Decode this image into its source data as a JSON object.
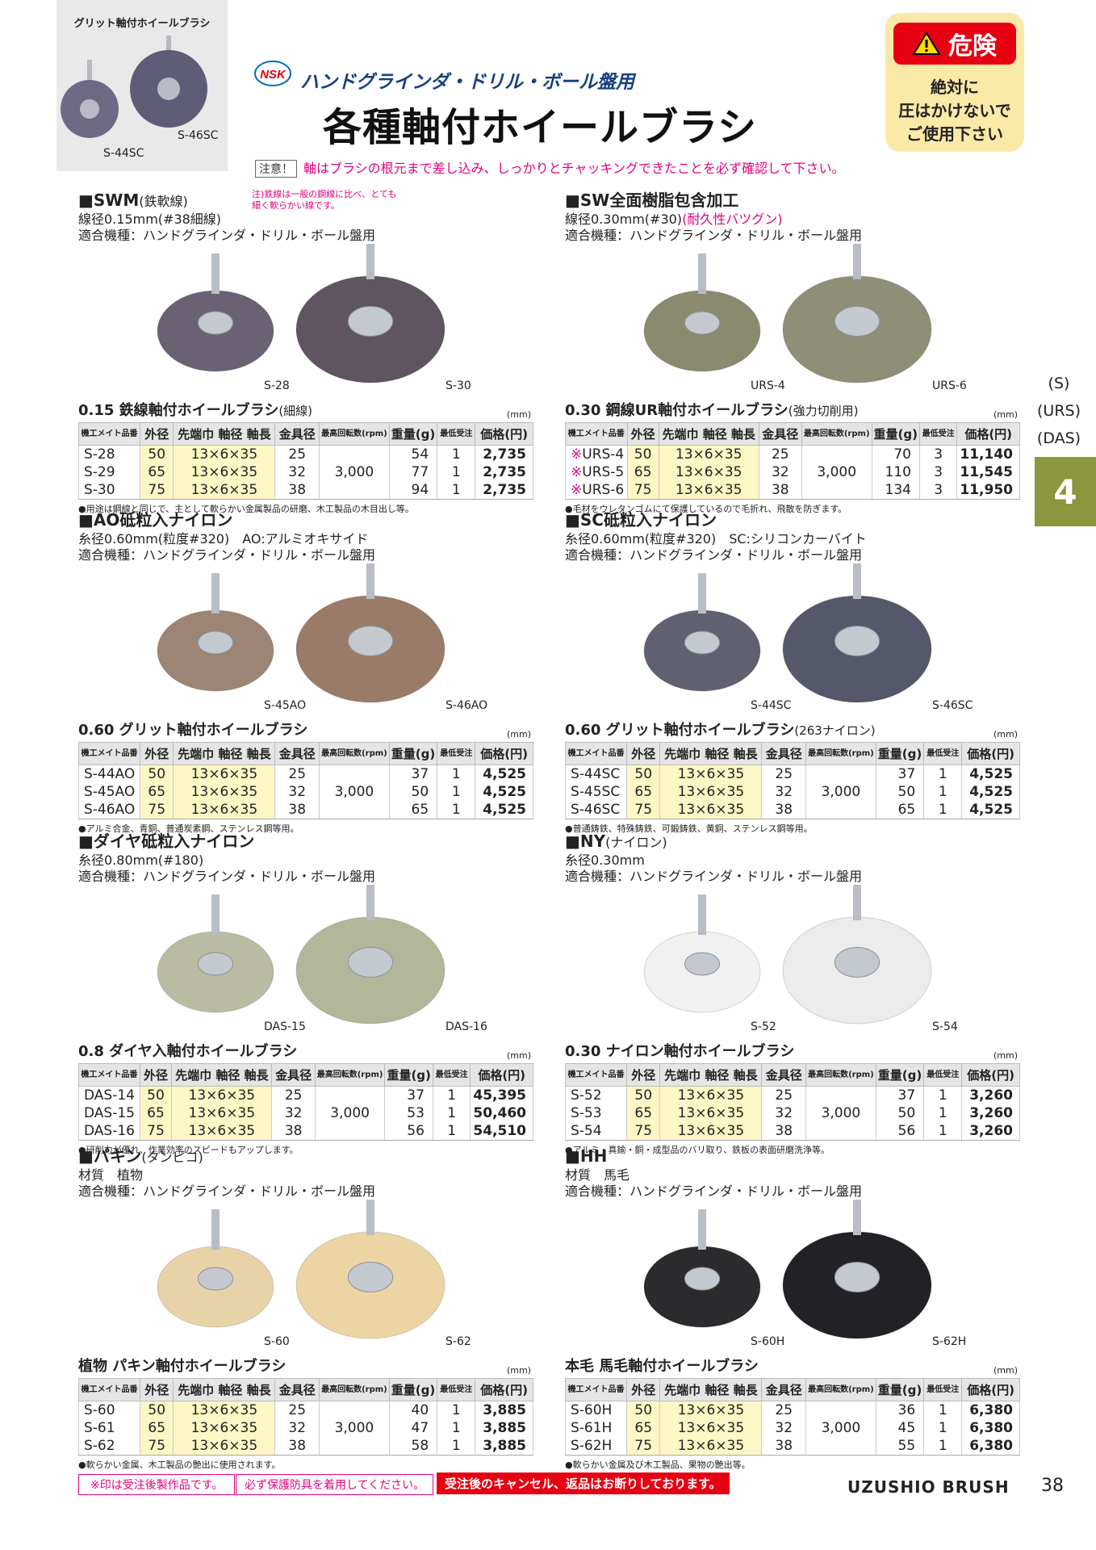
{
  "header": {
    "hero_caption": "グリット軸付ホイールブラシ",
    "hero_labels": [
      "S-44SC",
      "S-46SC"
    ],
    "logo": "NSK",
    "subtitle": "ハンドグラインダ・ドリル・ボール盤用",
    "title": "各種軸付ホイールブラシ",
    "danger": {
      "head": "危険",
      "lines": [
        "絶対に",
        "圧はかけないで",
        "ご使用下さい"
      ]
    },
    "caution_tag": "注意！",
    "caution_text": "軸はブラシの根元まで差し込み、しっかりとチャッキングできたことを必ず確認して下さい。"
  },
  "side": {
    "codes": [
      "(S)",
      "(URS)",
      "(DAS)"
    ],
    "tab": "4"
  },
  "columns": [
    "機工メイト品番",
    "外径",
    "先端巾 軸径 軸長",
    "金具径",
    "最高回転数(rpm)",
    "重量(g)",
    "最低受注",
    "価格(円)"
  ],
  "unit": "(mm)",
  "sections": [
    {
      "name": "SWM",
      "name_suffix": "(鉄軟線)",
      "note": "注)鉄線は一般の鋼線に比べ、とても細く軟らかい線です。",
      "spec1": "線径0.15mm(#38細線)",
      "spec1_red": "",
      "spec2": "適合機種：ハンドグラインダ・ドリル・ボール盤用",
      "photo_labels": [
        "S-28",
        "S-30"
      ],
      "table_title": "0.15 鉄線軸付ホイールブラシ",
      "table_title_suffix": "(細線)",
      "rpm": "3,000",
      "rows": [
        {
          "mark": "",
          "code": "S-28",
          "od": "50",
          "size": "13×6×35",
          "fitting": "25",
          "weight": "54",
          "min": "1",
          "price": "2,735"
        },
        {
          "mark": "",
          "code": "S-29",
          "od": "65",
          "size": "13×6×35",
          "fitting": "32",
          "weight": "77",
          "min": "1",
          "price": "2,735"
        },
        {
          "mark": "",
          "code": "S-30",
          "od": "75",
          "size": "13×6×35",
          "fitting": "38",
          "weight": "94",
          "min": "1",
          "price": "2,735"
        }
      ],
      "footnote": "●用途は鋼線と同じで、主として軟らかい金属製品の研磨、木工製品の木目出し等。",
      "colors": [
        "#6a6272",
        "#5e5560"
      ]
    },
    {
      "name": "SW全面樹脂包含加工",
      "name_suffix": "",
      "note": "",
      "spec1": "線径0.30mm(#30)",
      "spec1_red": "(耐久性バツグン)",
      "spec2": "適合機種：ハンドグラインダ・ドリル・ボール盤用",
      "photo_labels": [
        "URS-4",
        "URS-6"
      ],
      "table_title": "0.30 鋼線UR軸付ホイールブラシ",
      "table_title_suffix": "(強力切削用)",
      "rpm": "3,000",
      "rows": [
        {
          "mark": "※",
          "code": "URS-4",
          "od": "50",
          "size": "13×6×35",
          "fitting": "25",
          "weight": "70",
          "min": "3",
          "price": "11,140"
        },
        {
          "mark": "※",
          "code": "URS-5",
          "od": "65",
          "size": "13×6×35",
          "fitting": "32",
          "weight": "110",
          "min": "3",
          "price": "11,545"
        },
        {
          "mark": "※",
          "code": "URS-6",
          "od": "75",
          "size": "13×6×35",
          "fitting": "38",
          "weight": "134",
          "min": "3",
          "price": "11,950"
        }
      ],
      "footnote": "●毛材をウレタンゴムにて保護しているので毛折れ、飛散を防ぎます。",
      "colors": [
        "#8a8a6e",
        "#8f8f78"
      ]
    },
    {
      "name": "AO砥粒入ナイロン",
      "name_suffix": "",
      "note": "",
      "spec1": "糸径0.60mm(粒度#320)　AO:アルミオキサイド",
      "spec1_red": "",
      "spec2": "適合機種：ハンドグラインダ・ドリル・ボール盤用",
      "photo_labels": [
        "S-45AO",
        "S-46AO"
      ],
      "table_title": "0.60 グリット軸付ホイールブラシ",
      "table_title_suffix": "",
      "rpm": "3,000",
      "rows": [
        {
          "mark": "",
          "code": "S-44AO",
          "od": "50",
          "size": "13×6×35",
          "fitting": "25",
          "weight": "37",
          "min": "1",
          "price": "4,525"
        },
        {
          "mark": "",
          "code": "S-45AO",
          "od": "65",
          "size": "13×6×35",
          "fitting": "32",
          "weight": "50",
          "min": "1",
          "price": "4,525"
        },
        {
          "mark": "",
          "code": "S-46AO",
          "od": "75",
          "size": "13×6×35",
          "fitting": "38",
          "weight": "65",
          "min": "1",
          "price": "4,525"
        }
      ],
      "footnote": "●アルミ合金、青銅、普通炭素鋼、ステンレス鋼等用。",
      "colors": [
        "#9c8574",
        "#9a7b68"
      ]
    },
    {
      "name": "SC砥粒入ナイロン",
      "name_suffix": "",
      "note": "",
      "spec1": "糸径0.60mm(粒度#320)　SC:シリコンカーバイト",
      "spec1_red": "",
      "spec2": "適合機種：ハンドグラインダ・ドリル・ボール盤用",
      "photo_labels": [
        "S-44SC",
        "S-46SC"
      ],
      "table_title": "0.60 グリット軸付ホイールブラシ",
      "table_title_suffix": "(263ナイロン)",
      "rpm": "3,000",
      "rows": [
        {
          "mark": "",
          "code": "S-44SC",
          "od": "50",
          "size": "13×6×35",
          "fitting": "25",
          "weight": "37",
          "min": "1",
          "price": "4,525"
        },
        {
          "mark": "",
          "code": "S-45SC",
          "od": "65",
          "size": "13×6×35",
          "fitting": "32",
          "weight": "50",
          "min": "1",
          "price": "4,525"
        },
        {
          "mark": "",
          "code": "S-46SC",
          "od": "75",
          "size": "13×6×35",
          "fitting": "38",
          "weight": "65",
          "min": "1",
          "price": "4,525"
        }
      ],
      "footnote": "●普通鋳鉄、特殊鋳鉄、可鍛鋳鉄、黄銅、ステンレス鋼等用。",
      "colors": [
        "#5f6170",
        "#55586a"
      ]
    },
    {
      "name": "ダイヤ砥粒入ナイロン",
      "name_suffix": "",
      "note": "",
      "spec1": "糸径0.80mm(#180)",
      "spec1_red": "",
      "spec2": "適合機種：ハンドグラインダ・ドリル・ボール盤用",
      "photo_labels": [
        "DAS-15",
        "DAS-16"
      ],
      "table_title": "0.8 ダイヤ入軸付ホイールブラシ",
      "table_title_suffix": "",
      "rpm": "3,000",
      "rows": [
        {
          "mark": "",
          "code": "DAS-14",
          "od": "50",
          "size": "13×6×35",
          "fitting": "25",
          "weight": "37",
          "min": "1",
          "price": "45,395"
        },
        {
          "mark": "",
          "code": "DAS-15",
          "od": "65",
          "size": "13×6×35",
          "fitting": "32",
          "weight": "53",
          "min": "1",
          "price": "50,460"
        },
        {
          "mark": "",
          "code": "DAS-16",
          "od": "75",
          "size": "13×6×35",
          "fitting": "38",
          "weight": "56",
          "min": "1",
          "price": "54,510"
        }
      ],
      "footnote": "●研削力が優れ、作業効率のスピードもアップします。",
      "colors": [
        "#b9bca2",
        "#b3b79a"
      ]
    },
    {
      "name": "NY",
      "name_suffix": "(ナイロン)",
      "note": "",
      "spec1": "糸径0.30mm",
      "spec1_red": "",
      "spec2": "適合機種：ハンドグラインダ・ドリル・ボール盤用",
      "photo_labels": [
        "S-52",
        "S-54"
      ],
      "table_title": "0.30 ナイロン軸付ホイールブラシ",
      "table_title_suffix": "",
      "rpm": "3,000",
      "rows": [
        {
          "mark": "",
          "code": "S-52",
          "od": "50",
          "size": "13×6×35",
          "fitting": "25",
          "weight": "37",
          "min": "1",
          "price": "3,260"
        },
        {
          "mark": "",
          "code": "S-53",
          "od": "65",
          "size": "13×6×35",
          "fitting": "32",
          "weight": "50",
          "min": "1",
          "price": "3,260"
        },
        {
          "mark": "",
          "code": "S-54",
          "od": "75",
          "size": "13×6×35",
          "fitting": "38",
          "weight": "56",
          "min": "1",
          "price": "3,260"
        }
      ],
      "footnote": "●アルミ・真鍮・銅・成型品のバリ取り、鉄板の表面研磨洗浄等。",
      "colors": [
        "#f1f1f1",
        "#ececec"
      ]
    },
    {
      "name": "パキン",
      "name_suffix": "(タンピコ)",
      "note": "",
      "spec1": "材質　植物",
      "spec1_red": "",
      "spec2": "適合機種：ハンドグラインダ・ドリル・ボール盤用",
      "photo_labels": [
        "S-60",
        "S-62"
      ],
      "table_title": "植物 パキン軸付ホイールブラシ",
      "table_title_suffix": "",
      "rpm": "3,000",
      "rows": [
        {
          "mark": "",
          "code": "S-60",
          "od": "50",
          "size": "13×6×35",
          "fitting": "25",
          "weight": "40",
          "min": "1",
          "price": "3,885"
        },
        {
          "mark": "",
          "code": "S-61",
          "od": "65",
          "size": "13×6×35",
          "fitting": "32",
          "weight": "47",
          "min": "1",
          "price": "3,885"
        },
        {
          "mark": "",
          "code": "S-62",
          "od": "75",
          "size": "13×6×35",
          "fitting": "38",
          "weight": "58",
          "min": "1",
          "price": "3,885"
        }
      ],
      "footnote": "●軟らかい金属、木工製品の艶出に使用されます。",
      "colors": [
        "#e8d3a8",
        "#ecd4a4"
      ]
    },
    {
      "name": "HH",
      "name_suffix": "",
      "note": "",
      "spec1": "材質　馬毛",
      "spec1_red": "",
      "spec2": "適合機種：ハンドグラインダ・ドリル・ボール盤用",
      "photo_labels": [
        "S-60H",
        "S-62H"
      ],
      "table_title": "本毛 馬毛軸付ホイールブラシ",
      "table_title_suffix": "",
      "rpm": "3,000",
      "rows": [
        {
          "mark": "",
          "code": "S-60H",
          "od": "50",
          "size": "13×6×35",
          "fitting": "25",
          "weight": "36",
          "min": "1",
          "price": "6,380"
        },
        {
          "mark": "",
          "code": "S-61H",
          "od": "65",
          "size": "13×6×35",
          "fitting": "32",
          "weight": "45",
          "min": "1",
          "price": "6,380"
        },
        {
          "mark": "",
          "code": "S-62H",
          "od": "75",
          "size": "13×6×35",
          "fitting": "38",
          "weight": "55",
          "min": "1",
          "price": "6,380"
        }
      ],
      "footnote": "●軟らかい金属及び木工製品、果物の艶出等。",
      "colors": [
        "#2b2b2e",
        "#222226"
      ]
    }
  ],
  "footer": {
    "note1": "※印は受注後製作品です。",
    "note2": "必ず保護防具を着用してください。",
    "note3": "受注後のキャンセル、返品はお断りしております。",
    "brand": "UZUSHIO BRUSH",
    "page": "38"
  }
}
